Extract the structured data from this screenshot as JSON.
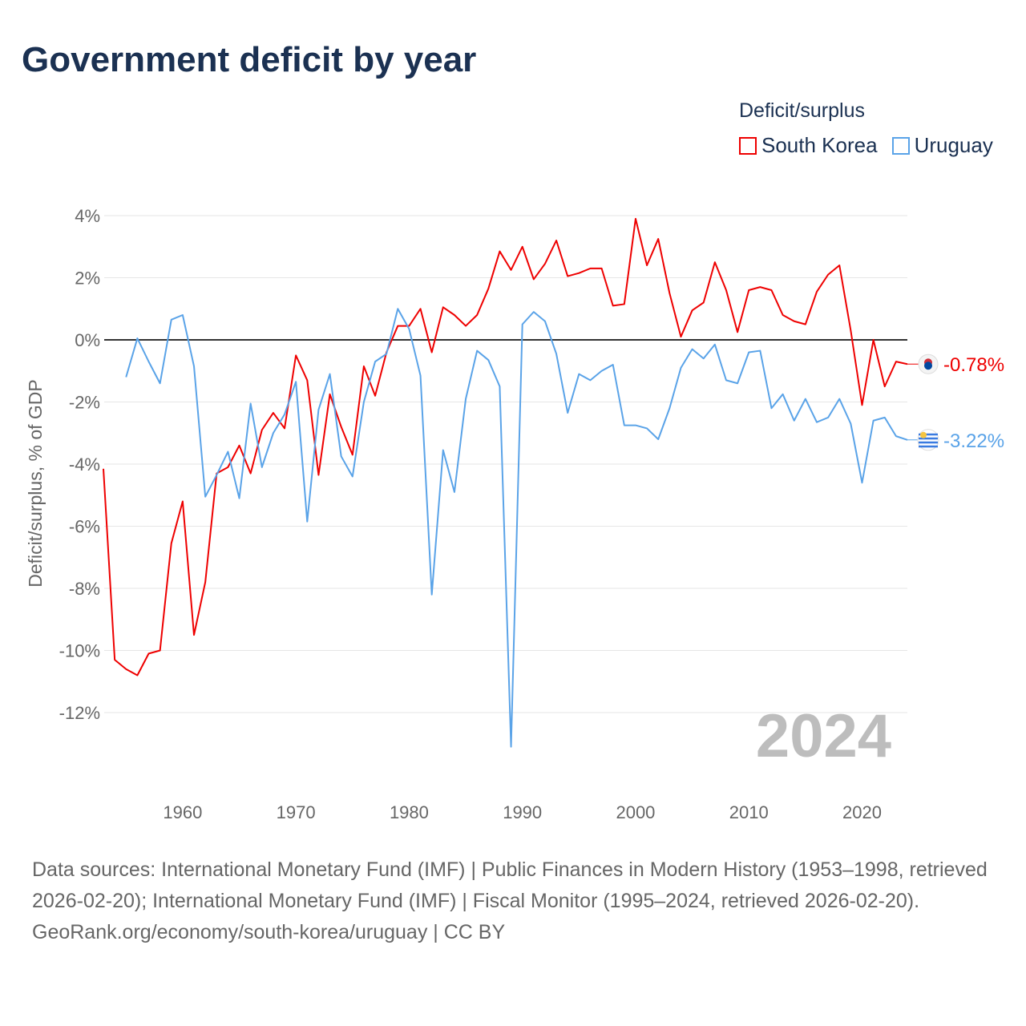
{
  "title": "Government deficit by year",
  "legend": {
    "title": "Deficit/surplus",
    "items": [
      {
        "name": "South Korea",
        "color": "#ee0000"
      },
      {
        "name": "Uruguay",
        "color": "#5aa3e8"
      }
    ]
  },
  "chart_data": {
    "type": "line",
    "title": "Government deficit by year",
    "xlabel": "",
    "ylabel": "Deficit/surplus, % of GDP",
    "xlim": [
      1953,
      2024
    ],
    "ylim": [
      -13.5,
      4.3
    ],
    "x_ticks": [
      1960,
      1970,
      1980,
      1990,
      2000,
      2010,
      2020
    ],
    "x_tick_labels": [
      "1960",
      "1970",
      "1980",
      "1990",
      "2000",
      "2010",
      "2020"
    ],
    "y_ticks": [
      4,
      2,
      0,
      -2,
      -4,
      -6,
      -8,
      -10,
      -12
    ],
    "y_tick_labels": [
      "4%",
      "2%",
      "0%",
      "-2%",
      "-4%",
      "-6%",
      "-8%",
      "-10%",
      "-12%"
    ],
    "grid": true,
    "legend_position": "top-right",
    "year_label": "2024",
    "series": [
      {
        "name": "South Korea",
        "color": "#ee0000",
        "end_label": "-0.78%",
        "start_year": 1953,
        "values": [
          -4.15,
          -10.3,
          -10.6,
          -10.8,
          -10.1,
          -10.0,
          -6.55,
          -5.2,
          -9.5,
          -7.8,
          -4.3,
          -4.1,
          -3.4,
          -4.3,
          -2.9,
          -2.35,
          -2.85,
          -0.5,
          -1.3,
          -4.35,
          -1.75,
          -2.8,
          -3.7,
          -0.85,
          -1.8,
          -0.4,
          0.45,
          0.45,
          1.0,
          -0.4,
          1.05,
          0.8,
          0.45,
          0.8,
          1.65,
          2.85,
          2.25,
          3.0,
          1.95,
          2.45,
          3.2,
          2.05,
          2.15,
          2.3,
          2.3,
          1.1,
          1.15,
          3.9,
          2.4,
          3.25,
          1.5,
          0.1,
          0.95,
          1.2,
          2.5,
          1.6,
          0.25,
          1.6,
          1.7,
          1.6,
          0.8,
          0.6,
          0.5,
          1.55,
          2.1,
          2.4,
          0.3,
          -2.1,
          0.0,
          -1.5,
          -0.7,
          -0.78
        ]
      },
      {
        "name": "Uruguay",
        "color": "#5aa3e8",
        "end_label": "-3.22%",
        "start_year": 1955,
        "values": [
          -1.2,
          0.05,
          -0.7,
          -1.4,
          0.65,
          0.8,
          -0.85,
          -5.05,
          -4.35,
          -3.6,
          -5.1,
          -2.05,
          -4.1,
          -3.0,
          -2.4,
          -1.35,
          -5.85,
          -2.25,
          -1.1,
          -3.75,
          -4.4,
          -2.0,
          -0.7,
          -0.45,
          1.0,
          0.35,
          -1.15,
          -8.2,
          -3.55,
          -4.9,
          -1.9,
          -0.35,
          -0.65,
          -1.5,
          -13.1,
          0.5,
          0.9,
          0.6,
          -0.45,
          -2.35,
          -1.1,
          -1.3,
          -1.0,
          -0.8,
          -2.75,
          -2.75,
          -2.85,
          -3.2,
          -2.2,
          -0.9,
          -0.3,
          -0.6,
          -0.15,
          -1.3,
          -1.4,
          -0.4,
          -0.35,
          -2.2,
          -1.75,
          -2.6,
          -1.9,
          -2.65,
          -2.5,
          -1.9,
          -2.7,
          -4.6,
          -2.6,
          -2.5,
          -3.1,
          -3.22
        ]
      }
    ]
  },
  "footer": {
    "sources": "Data sources: International Monetary Fund (IMF) | Public Finances in Modern History (1953–1998, retrieved 2026-02-20); International Monetary Fund (IMF) | Fiscal Monitor (1995–2024, retrieved 2026-02-20).",
    "credit": "GeoRank.org/economy/south-korea/uruguay | CC BY"
  }
}
